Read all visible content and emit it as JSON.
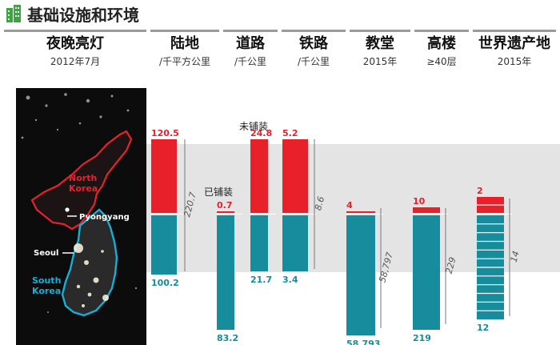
{
  "header": {
    "title": "基础设施和环境"
  },
  "columns": [
    {
      "title": "夜晚亮灯",
      "subtitle": "2012年7月"
    },
    {
      "title": "陆地",
      "subtitle": "/千平方公里"
    },
    {
      "title": "道路",
      "subtitle": "/千公里"
    },
    {
      "title": "铁路",
      "subtitle": "/千公里"
    },
    {
      "title": "教堂",
      "subtitle": "2015年"
    },
    {
      "title": "高楼",
      "subtitle": "≥40层"
    },
    {
      "title": "世界遗产地",
      "subtitle": "2015年"
    }
  ],
  "map": {
    "north_label_1": "North",
    "north_label_2": "Korea",
    "south_label_1": "South",
    "south_label_2": "Korea",
    "pyongyang": "Pyongyang",
    "seoul": "Seoul"
  },
  "chart_data": {
    "type": "bar",
    "orientation": "diverging",
    "series": [
      {
        "name": "North Korea",
        "color": "#e8202a"
      },
      {
        "name": "South Korea",
        "color": "#168c9c"
      }
    ],
    "groups": [
      {
        "category": "陆地",
        "north": 120.5,
        "south": 100.2,
        "total": 220.7,
        "north_label": "120.5",
        "south_label": "100.2",
        "total_label": "220.7"
      },
      {
        "category": "道路",
        "north": 0.7,
        "south": 83.2,
        "north_label": "0.7",
        "south_label": "83.2",
        "subtype": "已铺装"
      },
      {
        "category": "道路",
        "north": 24.8,
        "south": 21.7,
        "north_label": "24.8",
        "south_label": "21.7",
        "subtype": "未铺装"
      },
      {
        "category": "铁路",
        "north": 5.2,
        "south": 3.4,
        "total": 8.6,
        "north_label": "5.2",
        "south_label": "3.4",
        "total_label": "8.6"
      },
      {
        "category": "教堂",
        "north": 4,
        "south": 58793,
        "total": 58797,
        "north_label": "4",
        "south_label": "58,793",
        "total_label": "58,797"
      },
      {
        "category": "高楼",
        "north": 10,
        "south": 219,
        "total": 229,
        "north_label": "10",
        "south_label": "219",
        "total_label": "229"
      },
      {
        "category": "世界遗产地",
        "north": 2,
        "south": 12,
        "total": 14,
        "north_label": "2",
        "south_label": "12",
        "total_label": "14"
      }
    ],
    "annotations": {
      "unpaved": "未铺装",
      "paved": "已铺装"
    }
  }
}
